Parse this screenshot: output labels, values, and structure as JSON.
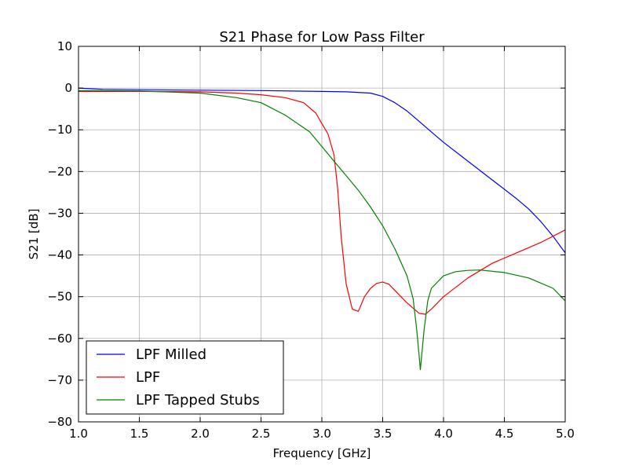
{
  "chart_data": {
    "type": "line",
    "title": "S21 Phase for Low Pass Filter",
    "xlabel": "Frequency [GHz]",
    "ylabel": "S21 [dB]",
    "xlim": [
      1.0,
      5.0
    ],
    "ylim": [
      -80,
      10
    ],
    "xticks": [
      "1.0",
      "1.5",
      "2.0",
      "2.5",
      "3.0",
      "3.5",
      "4.0",
      "4.5",
      "5.0"
    ],
    "yticks": [
      "10",
      "0",
      "−10",
      "−20",
      "−30",
      "−40",
      "−50",
      "−60",
      "−70",
      "−80"
    ],
    "grid": true,
    "legend_position": "lower-left",
    "series": [
      {
        "name": "LPF Milled",
        "color": "#0000ff",
        "x": [
          1.0,
          1.2,
          1.5,
          2.0,
          2.5,
          3.0,
          3.2,
          3.4,
          3.5,
          3.6,
          3.7,
          3.8,
          3.9,
          4.0,
          4.2,
          4.4,
          4.6,
          4.7,
          4.8,
          4.9,
          5.0
        ],
        "y": [
          0,
          -0.3,
          -0.4,
          -0.5,
          -0.6,
          -0.8,
          -0.9,
          -1.2,
          -2.0,
          -3.5,
          -5.5,
          -8.0,
          -10.5,
          -13.0,
          -17.5,
          -22.0,
          -26.5,
          -29.0,
          -32.0,
          -35.5,
          -39.5
        ]
      },
      {
        "name": "LPF",
        "color": "#ff0000",
        "x": [
          1.0,
          1.5,
          2.0,
          2.3,
          2.5,
          2.7,
          2.85,
          2.95,
          3.0,
          3.05,
          3.1,
          3.13,
          3.16,
          3.2,
          3.25,
          3.3,
          3.35,
          3.4,
          3.45,
          3.5,
          3.55,
          3.6,
          3.7,
          3.8,
          3.85,
          3.9,
          4.0,
          4.2,
          4.4,
          4.6,
          4.8,
          5.0
        ],
        "y": [
          -0.8,
          -0.8,
          -0.9,
          -1.2,
          -1.6,
          -2.3,
          -3.5,
          -6.0,
          -8.5,
          -11.0,
          -16.0,
          -24.0,
          -36.0,
          -47.0,
          -53.0,
          -53.5,
          -50.0,
          -48.0,
          -46.8,
          -46.5,
          -47.0,
          -48.5,
          -51.5,
          -54.0,
          -54.2,
          -53.0,
          -50.0,
          -45.5,
          -42.0,
          -39.5,
          -37.0,
          -34.0
        ]
      },
      {
        "name": "LPF Tapped Stubs",
        "color": "#008000",
        "x": [
          1.0,
          1.5,
          2.0,
          2.3,
          2.5,
          2.7,
          2.9,
          3.0,
          3.1,
          3.2,
          3.3,
          3.4,
          3.5,
          3.6,
          3.7,
          3.75,
          3.78,
          3.81,
          3.84,
          3.87,
          3.9,
          4.0,
          4.1,
          4.2,
          4.3,
          4.5,
          4.7,
          4.9,
          5.0
        ],
        "y": [
          -0.6,
          -0.7,
          -1.2,
          -2.3,
          -3.5,
          -6.5,
          -10.5,
          -14.0,
          -17.5,
          -21.0,
          -24.5,
          -28.5,
          -33.0,
          -38.5,
          -45.0,
          -50.5,
          -58.0,
          -67.5,
          -58.0,
          -51.0,
          -48.0,
          -45.0,
          -44.0,
          -43.7,
          -43.6,
          -44.2,
          -45.5,
          -48.0,
          -51.0
        ]
      }
    ]
  }
}
